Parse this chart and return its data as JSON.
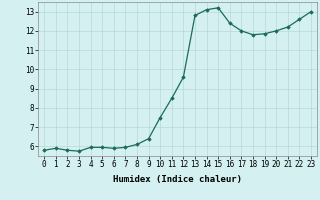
{
  "xlabel": "Humidex (Indice chaleur)",
  "ylabel": "",
  "x": [
    0,
    1,
    2,
    3,
    4,
    5,
    6,
    7,
    8,
    9,
    10,
    11,
    12,
    13,
    14,
    15,
    16,
    17,
    18,
    19,
    20,
    21,
    22,
    23
  ],
  "y": [
    5.8,
    5.9,
    5.8,
    5.75,
    5.95,
    5.95,
    5.9,
    5.95,
    6.1,
    6.4,
    7.5,
    8.5,
    9.6,
    12.8,
    13.1,
    13.2,
    12.4,
    12.0,
    11.8,
    11.85,
    12.0,
    12.2,
    12.6,
    13.0
  ],
  "line_color": "#1a6b5a",
  "marker": "D",
  "marker_size": 1.8,
  "bg_color": "#d4f0f0",
  "grid_color": "#b8d8d8",
  "ylim": [
    5.5,
    13.5
  ],
  "xlim": [
    -0.5,
    23.5
  ],
  "yticks": [
    6,
    7,
    8,
    9,
    10,
    11,
    12,
    13
  ],
  "xticks": [
    0,
    1,
    2,
    3,
    4,
    5,
    6,
    7,
    8,
    9,
    10,
    11,
    12,
    13,
    14,
    15,
    16,
    17,
    18,
    19,
    20,
    21,
    22,
    23
  ],
  "tick_fontsize": 5.5,
  "xlabel_fontsize": 6.5,
  "line_width": 0.9
}
